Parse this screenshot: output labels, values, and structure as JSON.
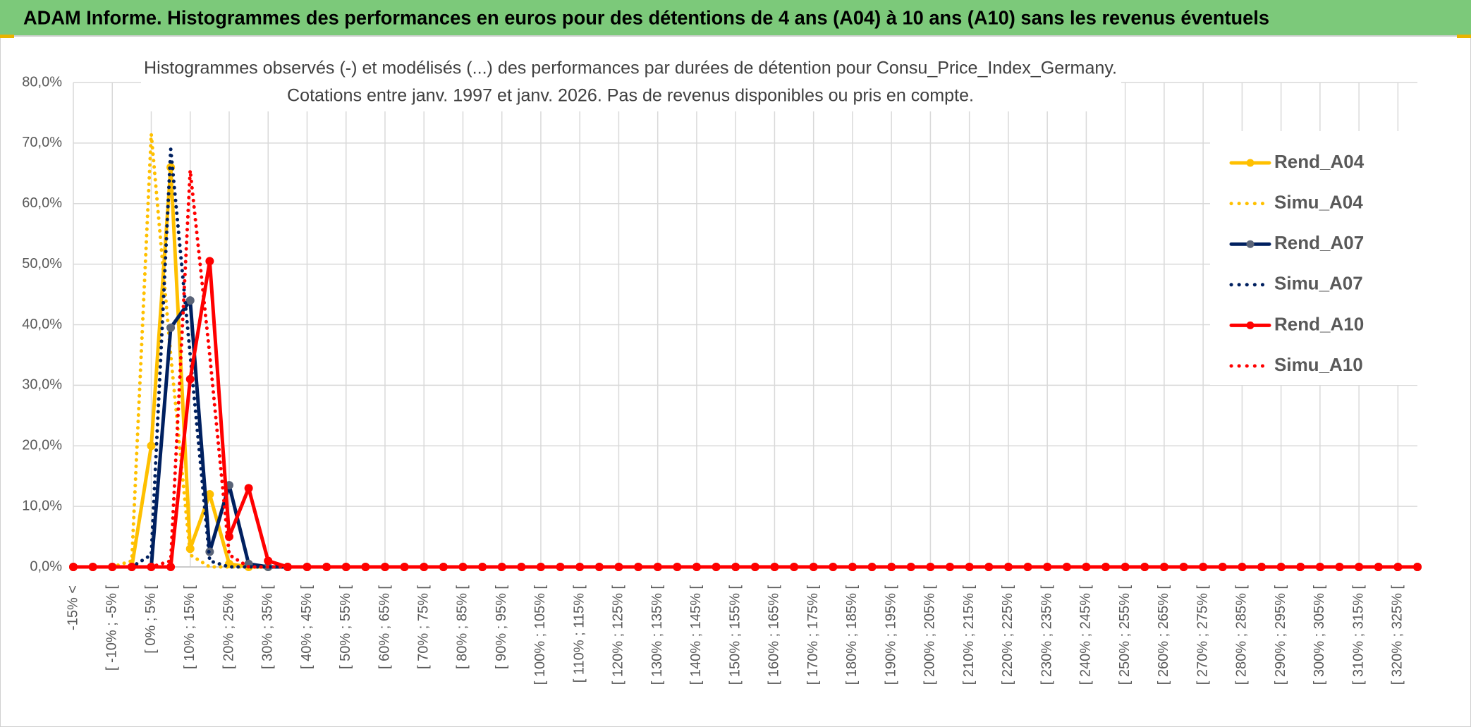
{
  "header": {
    "title": "ADAM Informe. Histogrammes des performances en euros pour des détentions de 4 ans (A04) à 10 ans (A10) sans les revenus éventuels"
  },
  "chart_data": {
    "type": "line",
    "title": [
      "Histogrammes observés (-) et modélisés (...) des performances par durées de détention pour Consu_Price_Index_Germany.",
      "Cotations entre janv. 1997 et janv. 2026. Pas de revenus disponibles ou pris en compte."
    ],
    "categories": [
      "-15% <",
      null,
      "[ -10% ; -5% [",
      null,
      "[ 0% ; 5% [",
      null,
      "[ 10% ; 15% [",
      null,
      "[ 20% ; 25% [",
      null,
      "[ 30% ; 35% [",
      null,
      "[ 40% ; 45% [",
      null,
      "[ 50% ; 55% [",
      null,
      "[ 60% ; 65% [",
      null,
      "[ 70% ; 75% [",
      null,
      "[ 80% ; 85% [",
      null,
      "[ 90% ; 95% [",
      null,
      "[ 100% ; 105% [",
      null,
      "[ 110% ; 115% [",
      null,
      "[ 120% ; 125% [",
      null,
      "[ 130% ; 135% [",
      null,
      "[ 140% ; 145% [",
      null,
      "[ 150% ; 155% [",
      null,
      "[ 160% ; 165% [",
      null,
      "[ 170% ; 175% [",
      null,
      "[ 180% ; 185% [",
      null,
      "[ 190% ; 195% [",
      null,
      "[ 200% ; 205% [",
      null,
      "[ 210% ; 215% [",
      null,
      "[ 220% ; 225% [",
      null,
      "[ 230% ; 235% [",
      null,
      "[ 240% ; 245% [",
      null,
      "[ 250% ; 255% [",
      null,
      "[ 260% ; 265% [",
      null,
      "[ 270% ; 275% [",
      null,
      "[ 280% ; 285% [",
      null,
      "[ 290% ; 295% [",
      null,
      "[ 300% ; 305% [",
      null,
      "[ 310% ; 315% [",
      null,
      "[ 320% ; 325% [",
      null
    ],
    "series": [
      {
        "name": "Rend_A04",
        "color": "#FFC000",
        "line_style": "solid",
        "markers": true,
        "marker_color": "#FFC000",
        "values": [
          0,
          0,
          0,
          0,
          20,
          66,
          3,
          12,
          0.5,
          0,
          0,
          0,
          0,
          0,
          0,
          0,
          0,
          0,
          0,
          0,
          0,
          0,
          0,
          0,
          0,
          0,
          0,
          0,
          0,
          0,
          0,
          0,
          0,
          0,
          0,
          0,
          0,
          0,
          0,
          0,
          0,
          0,
          0,
          0,
          0,
          0,
          0,
          0,
          0,
          0,
          0,
          0,
          0,
          0,
          0,
          0,
          0,
          0,
          0,
          0,
          0,
          0,
          0,
          0,
          0,
          0,
          0,
          0,
          0,
          0
        ]
      },
      {
        "name": "Simu_A04",
        "color": "#FFC000",
        "line_style": "dotted",
        "markers": false,
        "values": [
          0,
          0,
          0,
          1,
          71.5,
          35,
          2,
          0,
          0,
          0,
          0,
          0,
          0,
          0,
          0,
          0,
          0,
          0,
          0,
          0,
          0,
          0,
          0,
          0,
          0,
          0,
          0,
          0,
          0,
          0,
          0,
          0,
          0,
          0,
          0,
          0,
          0,
          0,
          0,
          0,
          0,
          0,
          0,
          0,
          0,
          0,
          0,
          0,
          0,
          0,
          0,
          0,
          0,
          0,
          0,
          0,
          0,
          0,
          0,
          0,
          0,
          0,
          0,
          0,
          0,
          0,
          0,
          0,
          0,
          0
        ]
      },
      {
        "name": "Rend_A07",
        "color": "#002060",
        "line_style": "solid",
        "markers": true,
        "marker_color": "#5A6478",
        "values": [
          0,
          0,
          0,
          0,
          0,
          39.5,
          44,
          2.5,
          13.5,
          0.5,
          0,
          0,
          0,
          0,
          0,
          0,
          0,
          0,
          0,
          0,
          0,
          0,
          0,
          0,
          0,
          0,
          0,
          0,
          0,
          0,
          0,
          0,
          0,
          0,
          0,
          0,
          0,
          0,
          0,
          0,
          0,
          0,
          0,
          0,
          0,
          0,
          0,
          0,
          0,
          0,
          0,
          0,
          0,
          0,
          0,
          0,
          0,
          0,
          0,
          0,
          0,
          0,
          0,
          0,
          0,
          0,
          0,
          0,
          0,
          0
        ]
      },
      {
        "name": "Simu_A07",
        "color": "#002060",
        "line_style": "dotted",
        "markers": false,
        "values": [
          0,
          0,
          0,
          0,
          2,
          69,
          35,
          1,
          0,
          0,
          0,
          0,
          0,
          0,
          0,
          0,
          0,
          0,
          0,
          0,
          0,
          0,
          0,
          0,
          0,
          0,
          0,
          0,
          0,
          0,
          0,
          0,
          0,
          0,
          0,
          0,
          0,
          0,
          0,
          0,
          0,
          0,
          0,
          0,
          0,
          0,
          0,
          0,
          0,
          0,
          0,
          0,
          0,
          0,
          0,
          0,
          0,
          0,
          0,
          0,
          0,
          0,
          0,
          0,
          0,
          0,
          0,
          0,
          0,
          0
        ]
      },
      {
        "name": "Simu_A10",
        "color": "#FF0000",
        "line_style": "dotted",
        "markers": false,
        "values": [
          0,
          0,
          0,
          0,
          0,
          1,
          65.5,
          35,
          2,
          0,
          0,
          0,
          0,
          0,
          0,
          0,
          0,
          0,
          0,
          0,
          0,
          0,
          0,
          0,
          0,
          0,
          0,
          0,
          0,
          0,
          0,
          0,
          0,
          0,
          0,
          0,
          0,
          0,
          0,
          0,
          0,
          0,
          0,
          0,
          0,
          0,
          0,
          0,
          0,
          0,
          0,
          0,
          0,
          0,
          0,
          0,
          0,
          0,
          0,
          0,
          0,
          0,
          0,
          0,
          0,
          0,
          0,
          0,
          0,
          0
        ]
      },
      {
        "name": "Rend_A10",
        "color": "#FF0000",
        "line_style": "solid",
        "markers": true,
        "marker_color": "#FF0000",
        "values": [
          0,
          0,
          0,
          0,
          0,
          0,
          31,
          50.5,
          5,
          13,
          1,
          0,
          0,
          0,
          0,
          0,
          0,
          0,
          0,
          0,
          0,
          0,
          0,
          0,
          0,
          0,
          0,
          0,
          0,
          0,
          0,
          0,
          0,
          0,
          0,
          0,
          0,
          0,
          0,
          0,
          0,
          0,
          0,
          0,
          0,
          0,
          0,
          0,
          0,
          0,
          0,
          0,
          0,
          0,
          0,
          0,
          0,
          0,
          0,
          0,
          0,
          0,
          0,
          0,
          0,
          0,
          0,
          0,
          0,
          0
        ]
      }
    ],
    "legend_order": [
      0,
      1,
      2,
      3,
      5,
      4
    ],
    "ylim": [
      0,
      80
    ],
    "yticks": [
      {
        "value": 0,
        "label": "0,0%"
      },
      {
        "value": 10,
        "label": "10,0%"
      },
      {
        "value": 20,
        "label": "20,0%"
      },
      {
        "value": 30,
        "label": "30,0%"
      },
      {
        "value": 40,
        "label": "40,0%"
      },
      {
        "value": 50,
        "label": "50,0%"
      },
      {
        "value": 60,
        "label": "60,0%"
      },
      {
        "value": 70,
        "label": "70,0%"
      },
      {
        "value": 80,
        "label": "80,0%"
      }
    ],
    "grid": true,
    "legend": "right"
  }
}
